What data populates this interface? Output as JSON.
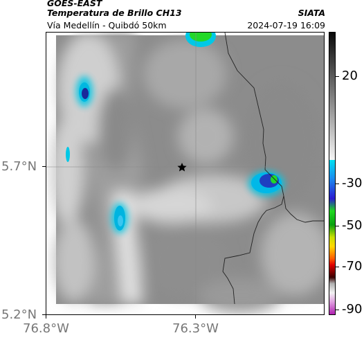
{
  "header": {
    "satellite": "GOES-EAST",
    "product": "Temperatura de Brillo CH13",
    "organization": "SIATA",
    "route": "Vía Medellín - Quibdó 50km",
    "timestamp": "2024-07-19 16:09"
  },
  "map": {
    "lat_labels": [
      "5.7°N",
      "5.2°N"
    ],
    "lon_labels": [
      "76.8°W",
      "76.3°W"
    ],
    "marker": "star-marker"
  },
  "colorbar": {
    "ticks": [
      "20",
      "-30",
      "-50",
      "-70",
      "-90"
    ],
    "scale_stops": [
      {
        "label": "20",
        "color": "#7a7a7a"
      },
      {
        "label": "-30",
        "color": "#2a4fd0"
      },
      {
        "label": "-50",
        "color": "#d8e000"
      },
      {
        "label": "-70",
        "color": "#3a0000"
      },
      {
        "label": "-90",
        "color": "#c030c0"
      }
    ]
  }
}
